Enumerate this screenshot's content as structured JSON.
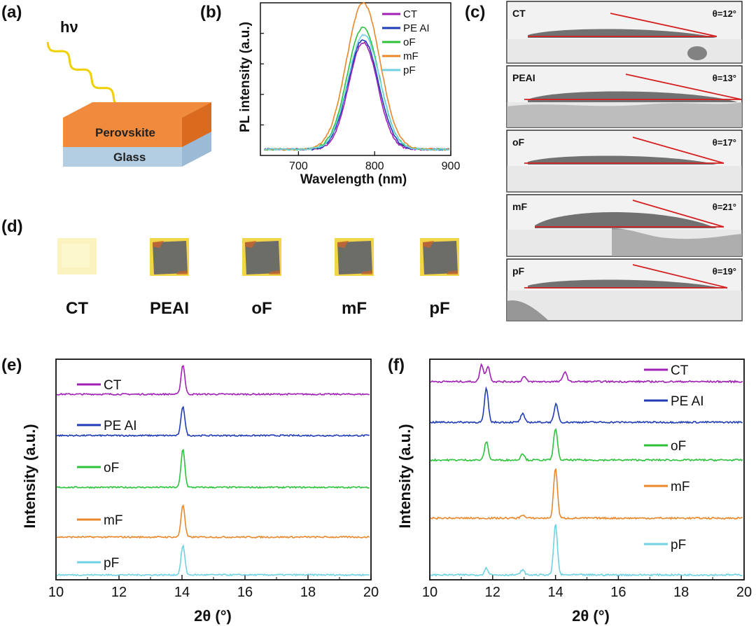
{
  "panels": {
    "a": "(a)",
    "b": "(b)",
    "c": "(c)",
    "d": "(d)",
    "e": "(e)",
    "f": "(f)"
  },
  "schematic": {
    "photon": "hν",
    "top_layer": "Perovskite",
    "substrate": "Glass",
    "colors": {
      "perovskite_top": "#f08a3c",
      "perovskite_side": "#d96a1e",
      "glass_side": "#a9c6e0",
      "beam": "#f0d000"
    }
  },
  "series_colors": {
    "CT": "#a01fb5",
    "PEAI": "#1f3bb5",
    "oF": "#2cc23a",
    "mF": "#e9872a",
    "pF": "#6fd2e3"
  },
  "contact_angles": [
    {
      "sample": "CT",
      "angle": "θ=12°"
    },
    {
      "sample": "PEAI",
      "angle": "θ=13°"
    },
    {
      "sample": "oF",
      "angle": "θ=17°"
    },
    {
      "sample": "mF",
      "angle": "θ=21°"
    },
    {
      "sample": "pF",
      "angle": "θ=19°"
    }
  ],
  "films": [
    {
      "label": "CT",
      "appearance": "pale-yellow"
    },
    {
      "label": "PEAI",
      "appearance": "gray-with-yellow-edge"
    },
    {
      "label": "oF",
      "appearance": "gray-with-yellow-edge"
    },
    {
      "label": "mF",
      "appearance": "gray-with-yellow-edge"
    },
    {
      "label": "pF",
      "appearance": "gray-with-yellow-edge"
    }
  ],
  "chart_data": [
    {
      "id": "b",
      "type": "line",
      "title": "",
      "xlabel": "Wavelength (nm)",
      "ylabel": "PL intensity (a.u.)",
      "xlim": [
        650,
        900
      ],
      "ylim": [
        0,
        1.0
      ],
      "xticks": [
        700,
        800,
        900
      ],
      "legend": [
        "CT",
        "PE AI",
        "oF",
        "mF",
        "pF"
      ],
      "legend_position": "top-right",
      "series": [
        {
          "name": "CT",
          "center": 785,
          "width": 19,
          "peak": 0.7
        },
        {
          "name": "PEAI",
          "center": 785,
          "width": 20,
          "peak": 0.72
        },
        {
          "name": "oF",
          "center": 785,
          "width": 21,
          "peak": 0.8
        },
        {
          "name": "mF",
          "center": 785,
          "width": 22,
          "peak": 0.96
        },
        {
          "name": "pF",
          "center": 786,
          "width": 21,
          "peak": 0.75
        }
      ]
    },
    {
      "id": "e",
      "type": "line",
      "title": "",
      "xlabel": "2θ (°)",
      "ylabel": "Intensity (a.u.)",
      "xlim": [
        10,
        20
      ],
      "xticks": [
        10,
        12,
        14,
        16,
        18,
        20
      ],
      "legend_position": "inline-left",
      "series": [
        {
          "name": "CT",
          "label": "CT",
          "peaks": [
            [
              14.03,
              1.0
            ]
          ]
        },
        {
          "name": "PEAI",
          "label": "PE AI",
          "peaks": [
            [
              14.03,
              1.0
            ]
          ]
        },
        {
          "name": "oF",
          "label": "oF",
          "peaks": [
            [
              14.03,
              1.3
            ]
          ]
        },
        {
          "name": "mF",
          "label": "mF",
          "peaks": [
            [
              14.03,
              1.1
            ]
          ]
        },
        {
          "name": "pF",
          "label": "pF",
          "peaks": [
            [
              14.03,
              1.0
            ]
          ]
        }
      ]
    },
    {
      "id": "f",
      "type": "line",
      "title": "",
      "xlabel": "2θ (°)",
      "ylabel": "Intensity (a.u.)",
      "xlim": [
        10,
        20
      ],
      "xticks": [
        10,
        12,
        14,
        16,
        18,
        20
      ],
      "legend_position": "inline-right",
      "series": [
        {
          "name": "CT",
          "label": "CT",
          "peaks": [
            [
              11.65,
              0.5
            ],
            [
              11.85,
              0.45
            ],
            [
              13.0,
              0.15
            ],
            [
              14.3,
              0.3
            ]
          ]
        },
        {
          "name": "PEAI",
          "label": "PE AI",
          "peaks": [
            [
              11.8,
              1.0
            ],
            [
              12.95,
              0.25
            ],
            [
              14.02,
              0.55
            ]
          ]
        },
        {
          "name": "oF",
          "label": "oF",
          "peaks": [
            [
              11.8,
              0.55
            ],
            [
              12.95,
              0.2
            ],
            [
              14.0,
              0.95
            ]
          ]
        },
        {
          "name": "mF",
          "label": "mF",
          "peaks": [
            [
              12.95,
              0.1
            ],
            [
              14.0,
              1.5
            ]
          ]
        },
        {
          "name": "pF",
          "label": "pF",
          "peaks": [
            [
              11.8,
              0.2
            ],
            [
              12.95,
              0.15
            ],
            [
              14.0,
              1.5
            ]
          ]
        }
      ]
    }
  ]
}
